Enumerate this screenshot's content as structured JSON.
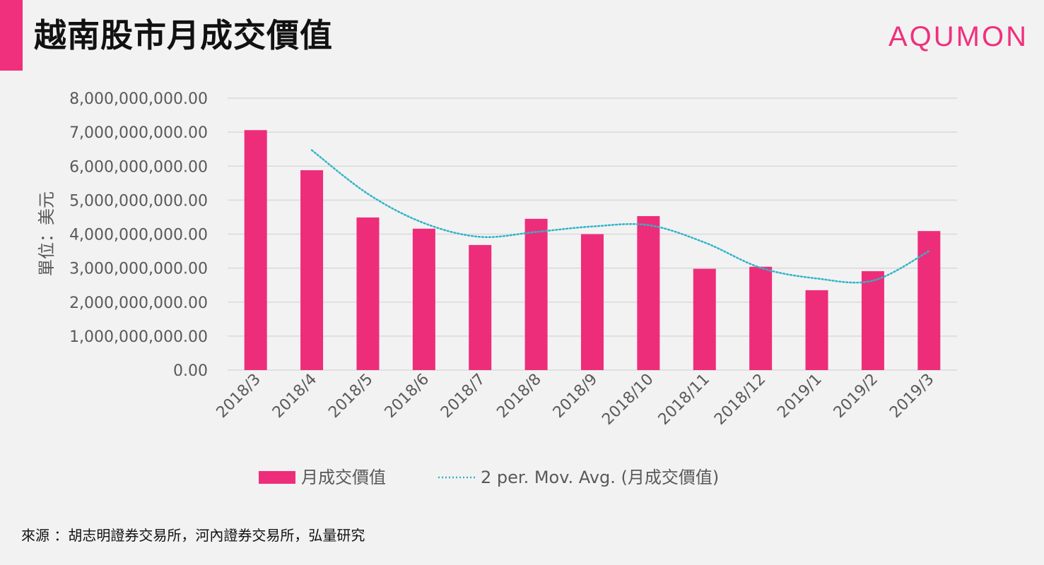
{
  "page": {
    "title": "越南股市月成交價值",
    "brand": "AQUMON",
    "source": "來源 ：胡志明證券交易所，河內證券交易所，弘量研究"
  },
  "colors": {
    "accent": "#f0307d",
    "bar": "#ee2d7a",
    "moving_average": "#2fb4c8",
    "gridline": "#d9d9d9",
    "axis_text": "#595959",
    "background": "#f2f2f2"
  },
  "chart_data": {
    "type": "bar",
    "categories": [
      "2018/3",
      "2018/4",
      "2018/5",
      "2018/6",
      "2018/7",
      "2018/8",
      "2018/9",
      "2018/10",
      "2018/11",
      "2018/12",
      "2019/1",
      "2019/2",
      "2019/3"
    ],
    "series": [
      {
        "name": "月成交價值",
        "type": "bar",
        "values": [
          7060000000,
          5880000000,
          4490000000,
          4160000000,
          3680000000,
          4450000000,
          4000000000,
          4530000000,
          2980000000,
          3040000000,
          2350000000,
          2910000000,
          4090000000
        ]
      },
      {
        "name": "2 per. Mov. Avg. (月成交價值)",
        "type": "line",
        "style": "dotted",
        "values": [
          null,
          6470000000,
          5185000000,
          4325000000,
          3920000000,
          4065000000,
          4225000000,
          4265000000,
          3755000000,
          3010000000,
          2695000000,
          2630000000,
          3500000000
        ]
      }
    ],
    "ylabel": "單位：美元",
    "xlabel": "",
    "ylim": [
      0,
      8000000000
    ],
    "yticks": [
      {
        "value": 0,
        "label": "0.00"
      },
      {
        "value": 1000000000,
        "label": "1,000,000,000.00"
      },
      {
        "value": 2000000000,
        "label": "2,000,000,000.00"
      },
      {
        "value": 3000000000,
        "label": "3,000,000,000.00"
      },
      {
        "value": 4000000000,
        "label": "4,000,000,000.00"
      },
      {
        "value": 5000000000,
        "label": "5,000,000,000.00"
      },
      {
        "value": 6000000000,
        "label": "6,000,000,000.00"
      },
      {
        "value": 7000000000,
        "label": "7,000,000,000.00"
      },
      {
        "value": 8000000000,
        "label": "8,000,000,000.00"
      }
    ],
    "grid": true,
    "legend_position": "bottom"
  }
}
